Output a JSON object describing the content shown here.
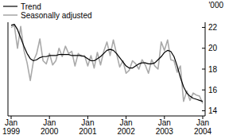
{
  "chart_data": {
    "type": "line",
    "y_label": "'000",
    "legend": "upper left",
    "categories": [
      "Jan 1999",
      null,
      null,
      null,
      null,
      null,
      null,
      null,
      null,
      null,
      null,
      null,
      "Jan 2000",
      null,
      null,
      null,
      null,
      null,
      null,
      null,
      null,
      null,
      null,
      null,
      "Jan 2001",
      null,
      null,
      null,
      null,
      null,
      null,
      null,
      null,
      null,
      null,
      null,
      "Jan 2002",
      null,
      null,
      null,
      null,
      null,
      null,
      null,
      null,
      null,
      null,
      null,
      "Jan 2003",
      null,
      null,
      null,
      null,
      null,
      null,
      null,
      null,
      null,
      null,
      null,
      "Jan 2004"
    ],
    "series": [
      {
        "name": "Trend",
        "color": "#000000",
        "values": [
          22.2,
          22.3,
          21.8,
          21.0,
          20.2,
          19.5,
          19.0,
          18.8,
          18.9,
          19.1,
          19.2,
          19.2,
          19.3,
          19.3,
          19.3,
          19.4,
          19.4,
          19.4,
          19.4,
          19.3,
          19.3,
          19.3,
          19.3,
          19.2,
          19.0,
          18.8,
          18.8,
          19.0,
          19.2,
          19.5,
          19.8,
          19.9,
          19.8,
          19.5,
          19.1,
          18.7,
          18.3,
          18.1,
          18.1,
          18.3,
          18.5,
          18.6,
          18.6,
          18.5,
          18.5,
          18.6,
          18.9,
          19.2,
          19.6,
          19.8,
          19.7,
          19.2,
          18.3,
          17.2,
          16.3,
          15.7,
          15.4,
          15.2,
          15.1,
          15.0,
          14.9
        ]
      },
      {
        "name": "Seasonally adjusted",
        "color": "#aaaaaa",
        "values": [
          22.0,
          22.2,
          20.0,
          22.1,
          19.8,
          18.6,
          16.9,
          18.8,
          19.5,
          20.9,
          18.8,
          18.5,
          19.5,
          18.4,
          18.8,
          20.0,
          19.2,
          20.2,
          19.5,
          19.7,
          18.3,
          19.5,
          19.2,
          19.3,
          18.3,
          19.3,
          18.1,
          19.6,
          18.4,
          19.7,
          20.6,
          19.3,
          20.8,
          19.5,
          18.2,
          18.8,
          17.6,
          17.9,
          18.8,
          18.5,
          18.0,
          18.9,
          18.4,
          17.6,
          18.9,
          18.3,
          18.0,
          20.6,
          19.8,
          20.8,
          18.9,
          18.8,
          17.7,
          18.3,
          14.9,
          15.9,
          15.0,
          15.7,
          15.5,
          15.4,
          14.7
        ]
      }
    ],
    "ylim": [
      13.5,
      22.5
    ],
    "yticks": [
      14,
      16,
      18,
      20,
      22
    ]
  }
}
